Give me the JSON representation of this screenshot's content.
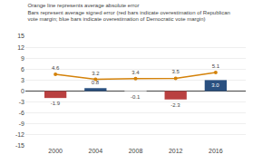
{
  "chart_data": {
    "type": "bar",
    "title": "Orange line represents average absolute error\nBars represent average signed error (red bars indicate overestimation of Republican\nvote margin; blue bars indicate overestimation of Democratic vote margin)",
    "x": [
      2000,
      2004,
      2008,
      2012,
      2016
    ],
    "series": [
      {
        "type": "bar",
        "colors": [
          "#b94040",
          "#2a5080",
          "#aaaaaa",
          "#b94040",
          "#2a5080"
        ],
        "values": [
          -1.9,
          0.8,
          -0.1,
          -2.3,
          3.0
        ],
        "value_labels": [
          "-1.9",
          "0.8",
          "-0.1",
          "-2.3",
          "3.0"
        ]
      },
      {
        "type": "line",
        "color": "#d4820a",
        "marker": "circle",
        "values": [
          4.6,
          3.2,
          3.4,
          3.5,
          5.1
        ]
      }
    ],
    "xlim": [
      1997,
      2019
    ],
    "xticks": [
      2000,
      2004,
      2008,
      2012,
      2016
    ],
    "ylim": [
      -15,
      15
    ],
    "yticks": [
      -15,
      -12,
      -9,
      -6,
      -3,
      0,
      3,
      6,
      9,
      12,
      15
    ],
    "grid": true,
    "data_labels": true
  }
}
